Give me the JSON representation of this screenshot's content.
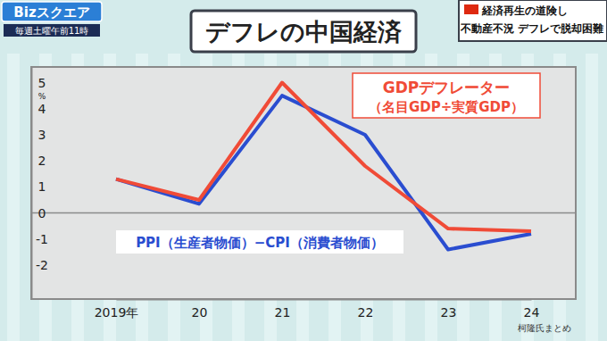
{
  "page": {
    "logo": "Bizスクエア",
    "schedule": "毎週土曜午前11時",
    "headline": [
      "経済再生の道険し",
      "不動産不況 デフレで脱却困難"
    ],
    "source": "柯隆氏まとめ"
  },
  "chart_data": {
    "type": "line",
    "title": "デフレの中国経済",
    "y_label": "%",
    "categories": [
      "2019年",
      "20",
      "21",
      "22",
      "23",
      "24"
    ],
    "series": [
      {
        "name": "GDPデフレーター（名目GDP÷実質GDP）",
        "color": "#f04b37",
        "values": [
          1.3,
          0.5,
          5.0,
          1.8,
          -0.6,
          -0.7
        ]
      },
      {
        "name": "PPI（生産者物価）−CPI（消費者物価）",
        "color": "#2a4dd0",
        "values": [
          1.3,
          0.35,
          4.5,
          3.0,
          -1.4,
          -0.8
        ]
      }
    ],
    "ylim": [
      -3.3,
      5.6
    ],
    "yticks": [
      -2,
      -1,
      0,
      1,
      2,
      3,
      4,
      5
    ],
    "grid": false
  }
}
